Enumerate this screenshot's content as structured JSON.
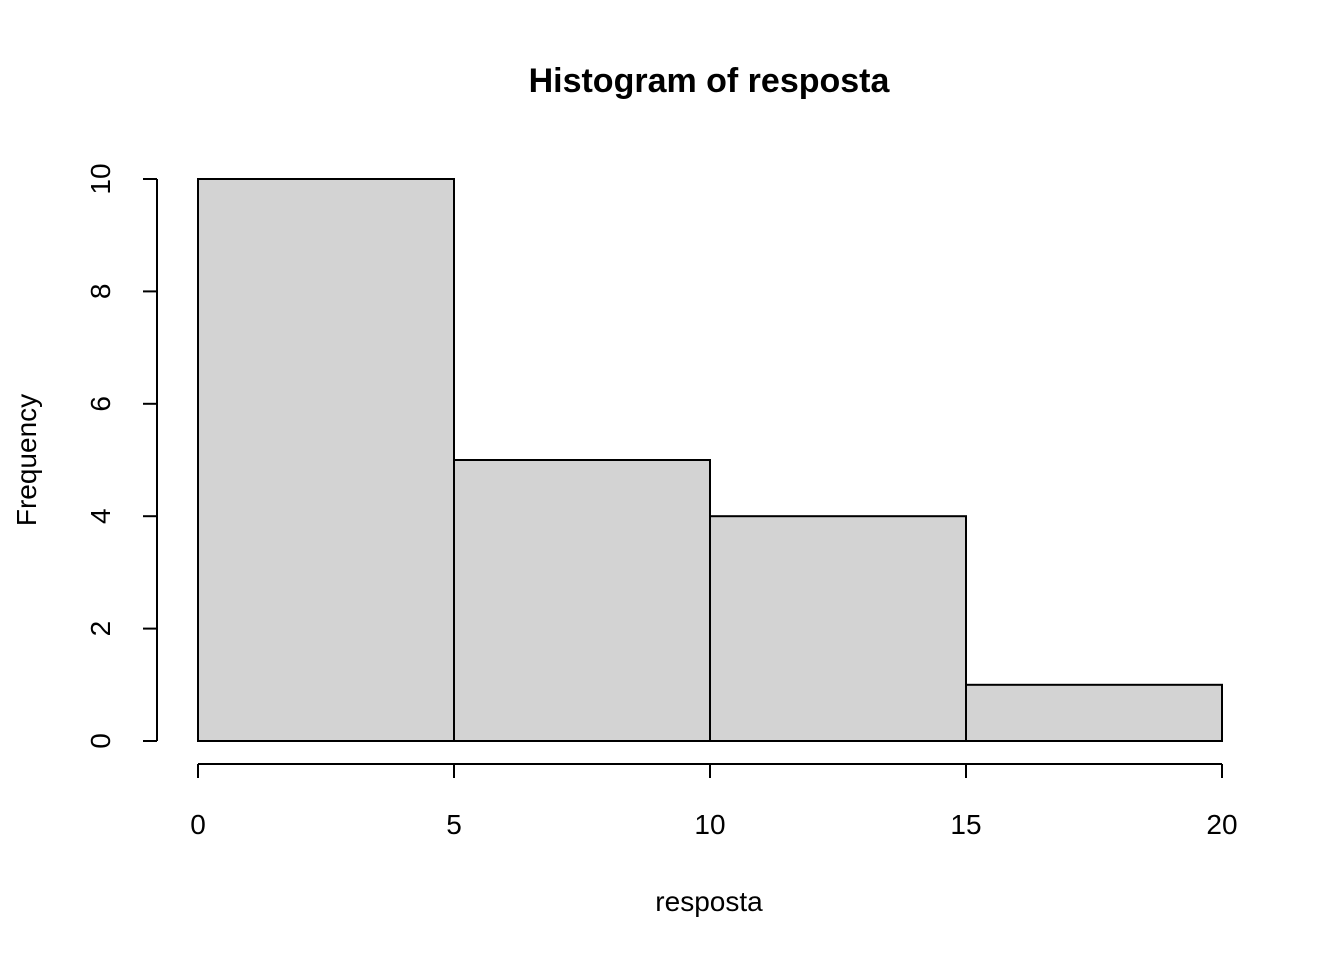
{
  "chart_data": {
    "type": "bar",
    "title": "Histogram of resposta",
    "xlabel": "resposta",
    "ylabel": "Frequency",
    "bins": [
      {
        "from": 0,
        "to": 5,
        "count": 10
      },
      {
        "from": 5,
        "to": 10,
        "count": 5
      },
      {
        "from": 10,
        "to": 15,
        "count": 4
      },
      {
        "from": 15,
        "to": 20,
        "count": 1
      }
    ],
    "x_ticks": [
      0,
      5,
      10,
      15,
      20
    ],
    "y_ticks": [
      0,
      2,
      4,
      6,
      8,
      10
    ],
    "xlim": [
      0,
      20
    ],
    "ylim": [
      0,
      10
    ],
    "grid": false,
    "bar_color": "#d3d3d3",
    "edge_color": "#000000"
  }
}
